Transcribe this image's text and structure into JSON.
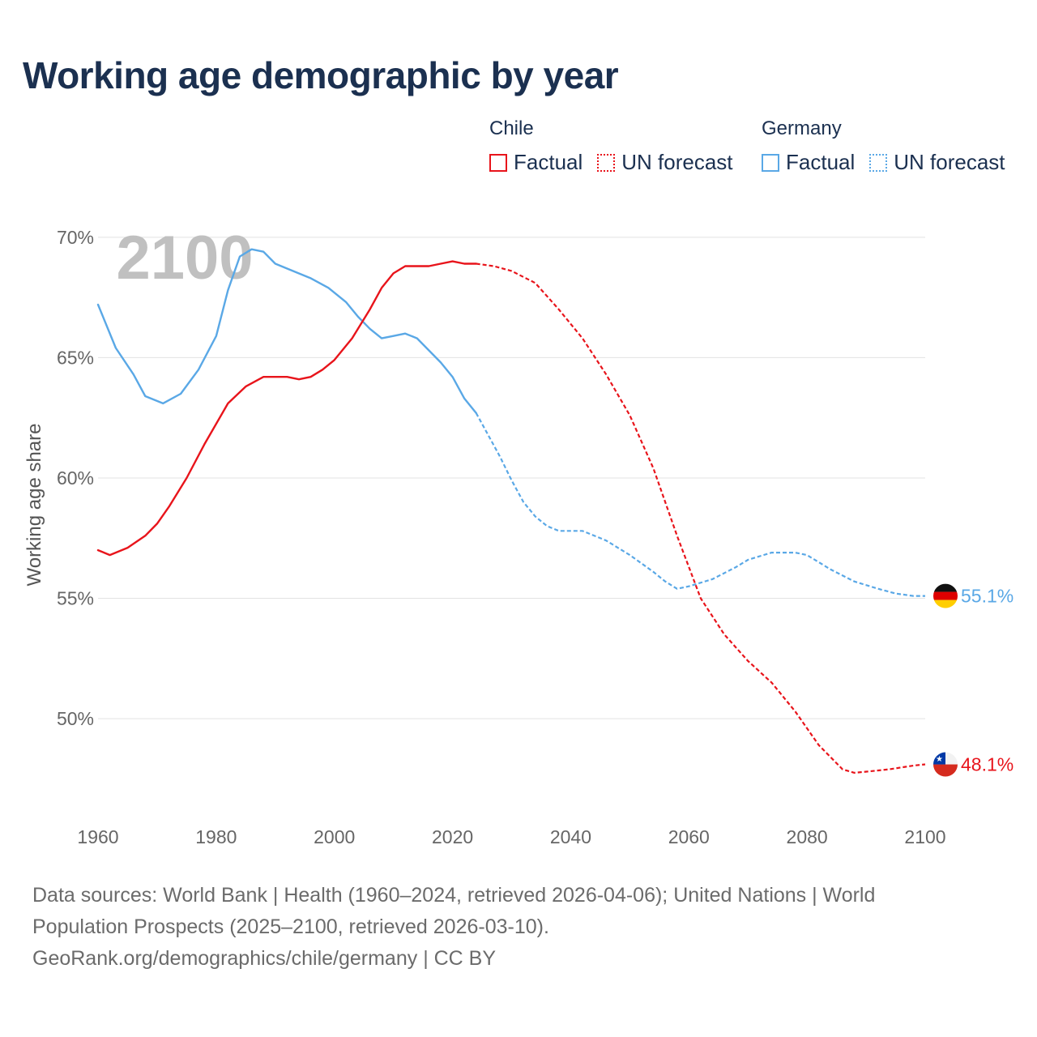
{
  "title": "Working age demographic by year",
  "legend": {
    "groups": [
      {
        "name": "Chile",
        "color": "#e8141b",
        "factual": "Factual",
        "forecast": "UN forecast"
      },
      {
        "name": "Germany",
        "color": "#5aa8e6",
        "factual": "Factual",
        "forecast": "UN forecast"
      }
    ]
  },
  "year_watermark": "2100",
  "footer": {
    "line1": "Data sources: World Bank | Health (1960–2024, retrieved 2026-04-06); United Nations | World",
    "line2": "Population Prospects (2025–2100, retrieved 2026-03-10).",
    "line3": "GeoRank.org/demographics/chile/germany | CC BY"
  },
  "chart_data": {
    "type": "line",
    "title": "Working age demographic by year",
    "xlabel": "",
    "ylabel": "Working age share",
    "xlim": [
      1960,
      2100
    ],
    "ylim": [
      46.2,
      70.5
    ],
    "x_ticks": [
      1960,
      1980,
      2000,
      2020,
      2040,
      2060,
      2080,
      2100
    ],
    "y_ticks": [
      50,
      55,
      60,
      65,
      70
    ],
    "y_tick_labels": [
      "50%",
      "55%",
      "60%",
      "65%",
      "70%"
    ],
    "grid": true,
    "forecast_start": 2024,
    "series": [
      {
        "name": "Chile",
        "color": "#e8141b",
        "end_label": "48.1%",
        "points": [
          [
            1960,
            57.0
          ],
          [
            1962,
            56.8
          ],
          [
            1965,
            57.1
          ],
          [
            1968,
            57.6
          ],
          [
            1970,
            58.1
          ],
          [
            1972,
            58.8
          ],
          [
            1975,
            60.0
          ],
          [
            1978,
            61.4
          ],
          [
            1982,
            63.1
          ],
          [
            1985,
            63.8
          ],
          [
            1988,
            64.2
          ],
          [
            1990,
            64.2
          ],
          [
            1992,
            64.2
          ],
          [
            1994,
            64.1
          ],
          [
            1996,
            64.2
          ],
          [
            1998,
            64.5
          ],
          [
            2000,
            64.9
          ],
          [
            2003,
            65.8
          ],
          [
            2006,
            67.0
          ],
          [
            2008,
            67.9
          ],
          [
            2010,
            68.5
          ],
          [
            2012,
            68.8
          ],
          [
            2014,
            68.8
          ],
          [
            2016,
            68.8
          ],
          [
            2018,
            68.9
          ],
          [
            2020,
            69.0
          ],
          [
            2022,
            68.9
          ],
          [
            2024,
            68.9
          ],
          [
            2027,
            68.8
          ],
          [
            2030,
            68.6
          ],
          [
            2034,
            68.1
          ],
          [
            2038,
            67.0
          ],
          [
            2042,
            65.8
          ],
          [
            2046,
            64.3
          ],
          [
            2050,
            62.6
          ],
          [
            2054,
            60.4
          ],
          [
            2058,
            57.6
          ],
          [
            2062,
            55.0
          ],
          [
            2066,
            53.5
          ],
          [
            2070,
            52.4
          ],
          [
            2074,
            51.5
          ],
          [
            2078,
            50.3
          ],
          [
            2082,
            48.9
          ],
          [
            2086,
            47.9
          ],
          [
            2088,
            47.75
          ],
          [
            2090,
            47.8
          ],
          [
            2094,
            47.9
          ],
          [
            2098,
            48.05
          ],
          [
            2100,
            48.1
          ]
        ]
      },
      {
        "name": "Germany",
        "color": "#5aa8e6",
        "end_label": "55.1%",
        "points": [
          [
            1960,
            67.2
          ],
          [
            1963,
            65.4
          ],
          [
            1966,
            64.3
          ],
          [
            1968,
            63.4
          ],
          [
            1971,
            63.1
          ],
          [
            1974,
            63.5
          ],
          [
            1977,
            64.5
          ],
          [
            1980,
            65.9
          ],
          [
            1982,
            67.8
          ],
          [
            1984,
            69.2
          ],
          [
            1986,
            69.5
          ],
          [
            1988,
            69.4
          ],
          [
            1990,
            68.9
          ],
          [
            1993,
            68.6
          ],
          [
            1996,
            68.3
          ],
          [
            1999,
            67.9
          ],
          [
            2002,
            67.3
          ],
          [
            2004,
            66.7
          ],
          [
            2006,
            66.2
          ],
          [
            2008,
            65.8
          ],
          [
            2010,
            65.9
          ],
          [
            2012,
            66.0
          ],
          [
            2014,
            65.8
          ],
          [
            2016,
            65.3
          ],
          [
            2018,
            64.8
          ],
          [
            2020,
            64.2
          ],
          [
            2022,
            63.3
          ],
          [
            2024,
            62.7
          ],
          [
            2026,
            61.8
          ],
          [
            2028,
            60.9
          ],
          [
            2030,
            59.9
          ],
          [
            2032,
            59.0
          ],
          [
            2034,
            58.4
          ],
          [
            2036,
            58.0
          ],
          [
            2038,
            57.8
          ],
          [
            2042,
            57.8
          ],
          [
            2046,
            57.4
          ],
          [
            2050,
            56.8
          ],
          [
            2054,
            56.1
          ],
          [
            2056,
            55.7
          ],
          [
            2058,
            55.4
          ],
          [
            2060,
            55.5
          ],
          [
            2064,
            55.8
          ],
          [
            2068,
            56.3
          ],
          [
            2070,
            56.6
          ],
          [
            2074,
            56.9
          ],
          [
            2078,
            56.9
          ],
          [
            2080,
            56.8
          ],
          [
            2084,
            56.2
          ],
          [
            2088,
            55.7
          ],
          [
            2092,
            55.4
          ],
          [
            2095,
            55.2
          ],
          [
            2098,
            55.1
          ],
          [
            2100,
            55.1
          ]
        ]
      }
    ]
  }
}
